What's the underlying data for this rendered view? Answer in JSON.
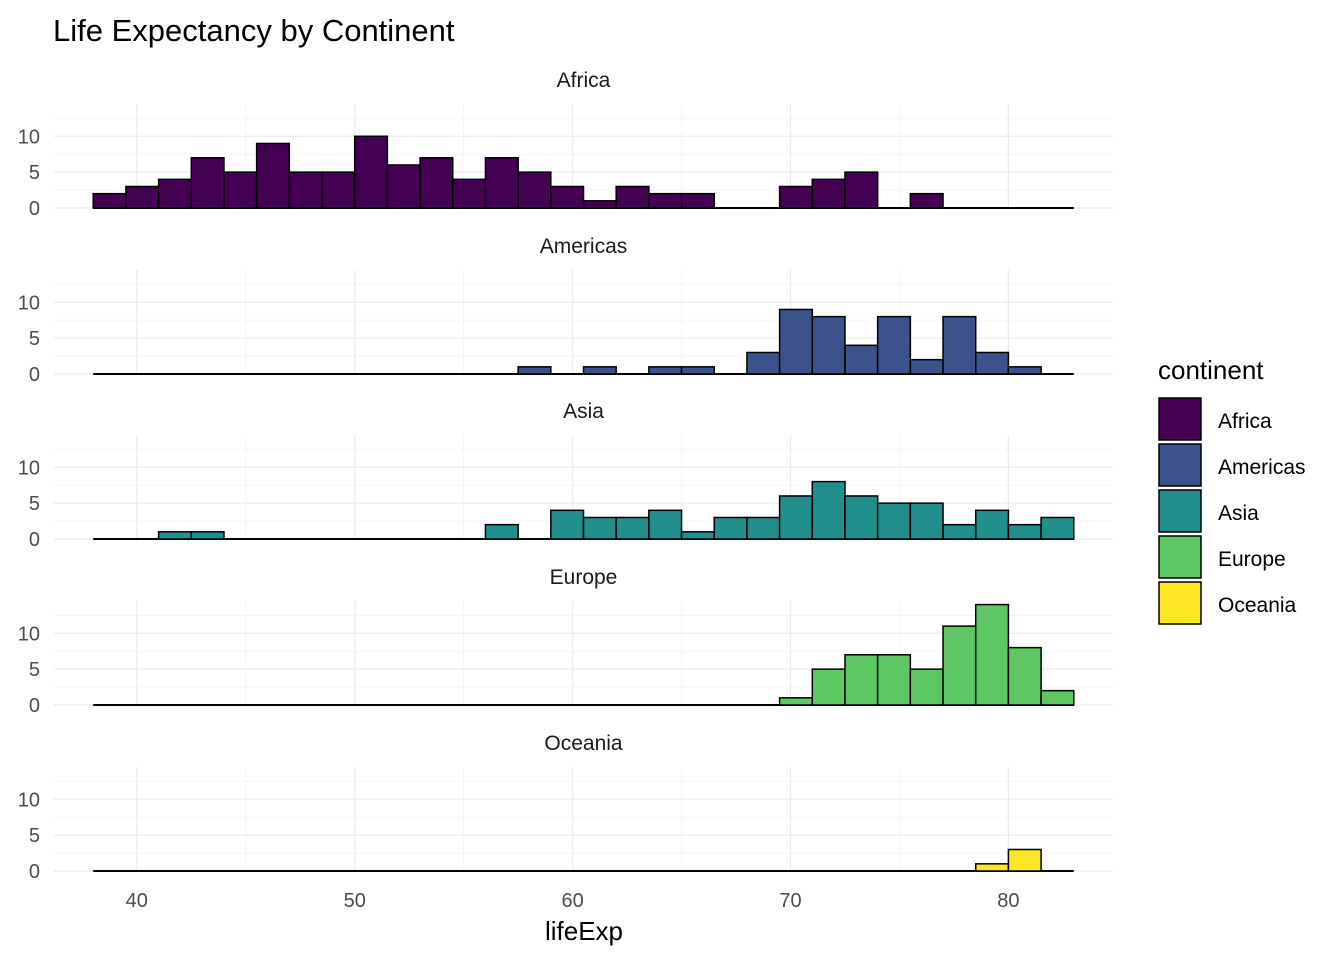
{
  "chart_data": {
    "type": "bar",
    "title": "Life Expectancy by Continent",
    "xlabel": "lifeExp",
    "ylabel": "",
    "xlim": [
      36.2,
      84.8
    ],
    "ylim": [
      0,
      14.5
    ],
    "x_ticks": [
      40,
      50,
      60,
      70,
      80
    ],
    "y_ticks": [
      0,
      5,
      10
    ],
    "bin_start": 38.0,
    "bin_width": 1.5,
    "n_bins": 30,
    "grid": true,
    "legend": {
      "title": "continent",
      "placement": "right",
      "entries": [
        "Africa",
        "Americas",
        "Asia",
        "Europe",
        "Oceania"
      ]
    },
    "series": [
      {
        "name": "Africa",
        "color": "#440154",
        "values": [
          2,
          3,
          4,
          7,
          5,
          9,
          5,
          5,
          10,
          6,
          7,
          4,
          7,
          5,
          3,
          1,
          3,
          2,
          2,
          0,
          0,
          3,
          4,
          5,
          0,
          2,
          0,
          0,
          0,
          0
        ]
      },
      {
        "name": "Americas",
        "color": "#3B528B",
        "values": [
          0,
          0,
          0,
          0,
          0,
          0,
          0,
          0,
          0,
          0,
          0,
          0,
          0,
          1,
          0,
          1,
          0,
          1,
          1,
          0,
          3,
          9,
          8,
          4,
          8,
          2,
          8,
          3,
          1,
          0
        ]
      },
      {
        "name": "Asia",
        "color": "#21908C",
        "values": [
          0,
          0,
          1,
          1,
          0,
          0,
          0,
          0,
          0,
          0,
          0,
          0,
          2,
          0,
          4,
          3,
          3,
          4,
          1,
          3,
          3,
          6,
          8,
          6,
          5,
          5,
          2,
          4,
          2,
          3
        ]
      },
      {
        "name": "Europe",
        "color": "#5DC863",
        "values": [
          0,
          0,
          0,
          0,
          0,
          0,
          0,
          0,
          0,
          0,
          0,
          0,
          0,
          0,
          0,
          0,
          0,
          0,
          0,
          0,
          0,
          1,
          5,
          7,
          7,
          5,
          11,
          14,
          8,
          2
        ]
      },
      {
        "name": "Oceania",
        "color": "#FDE725",
        "values": [
          0,
          0,
          0,
          0,
          0,
          0,
          0,
          0,
          0,
          0,
          0,
          0,
          0,
          0,
          0,
          0,
          0,
          0,
          0,
          0,
          0,
          0,
          0,
          0,
          0,
          0,
          0,
          1,
          3,
          0
        ]
      }
    ]
  }
}
